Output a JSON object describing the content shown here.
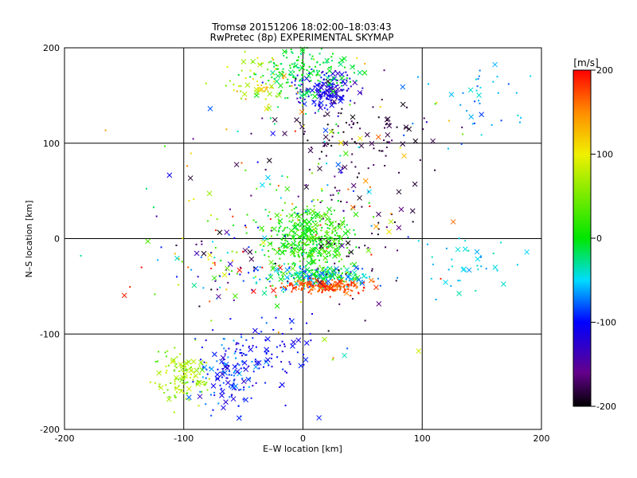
{
  "chart_data": {
    "type": "scatter",
    "title": "Tromsø 20151206 18:02:00–18:03:43",
    "subtitle": "RwPretec (8p) EXPERIMENTAL SKYMAP",
    "xlabel": "E–W location [km]",
    "ylabel": "N–S location [km]",
    "xlim": [
      -200,
      200
    ],
    "ylim": [
      -200,
      200
    ],
    "xticks": [
      -200,
      -100,
      0,
      100,
      200
    ],
    "yticks": [
      -200,
      -100,
      0,
      100,
      200
    ],
    "grid": true,
    "colorbar": {
      "label": "[m/s]",
      "range": [
        -200,
        200
      ],
      "ticks": [
        200,
        100,
        0,
        -100,
        -200
      ]
    },
    "clusters": [
      {
        "x": 5,
        "y": 0,
        "sx": 18,
        "sy": 17,
        "vmin": -20,
        "vmax": 50,
        "n": 420
      },
      {
        "x": 15,
        "y": -40,
        "sx": 22,
        "sy": 6,
        "vmin": -90,
        "vmax": 30,
        "n": 220
      },
      {
        "x": 18,
        "y": -50,
        "sx": 20,
        "sy": 4,
        "vmin": 150,
        "vmax": 200,
        "n": 180
      },
      {
        "x": 20,
        "y": 155,
        "sx": 12,
        "sy": 10,
        "vmin": -140,
        "vmax": -90,
        "n": 170
      },
      {
        "x": 0,
        "y": 175,
        "sx": 18,
        "sy": 14,
        "vmin": -30,
        "vmax": 10,
        "n": 160
      },
      {
        "x": -35,
        "y": 165,
        "sx": 12,
        "sy": 14,
        "vmin": 40,
        "vmax": 140,
        "n": 60
      },
      {
        "x": 55,
        "y": 110,
        "sx": 30,
        "sy": 20,
        "vmin": -200,
        "vmax": -170,
        "n": 80
      },
      {
        "x": 50,
        "y": 30,
        "sx": 25,
        "sy": 40,
        "vmin": -200,
        "vmax": -160,
        "n": 70
      },
      {
        "x": -100,
        "y": -145,
        "sx": 12,
        "sy": 14,
        "vmin": 30,
        "vmax": 90,
        "n": 120
      },
      {
        "x": -60,
        "y": -140,
        "sx": 14,
        "sy": 22,
        "vmin": -130,
        "vmax": -60,
        "n": 150
      },
      {
        "x": -20,
        "y": -120,
        "sx": 14,
        "sy": 22,
        "vmin": -120,
        "vmax": -90,
        "n": 60
      },
      {
        "x": 0,
        "y": 50,
        "sx": 60,
        "sy": 80,
        "vmin": -200,
        "vmax": 200,
        "n": 180
      },
      {
        "x": -70,
        "y": -30,
        "sx": 30,
        "sy": 20,
        "vmin": -200,
        "vmax": 200,
        "n": 90
      },
      {
        "x": 140,
        "y": -30,
        "sx": 25,
        "sy": 15,
        "vmin": -70,
        "vmax": -30,
        "n": 40
      },
      {
        "x": 150,
        "y": 140,
        "sx": 25,
        "sy": 20,
        "vmin": -90,
        "vmax": -40,
        "n": 40
      }
    ]
  }
}
